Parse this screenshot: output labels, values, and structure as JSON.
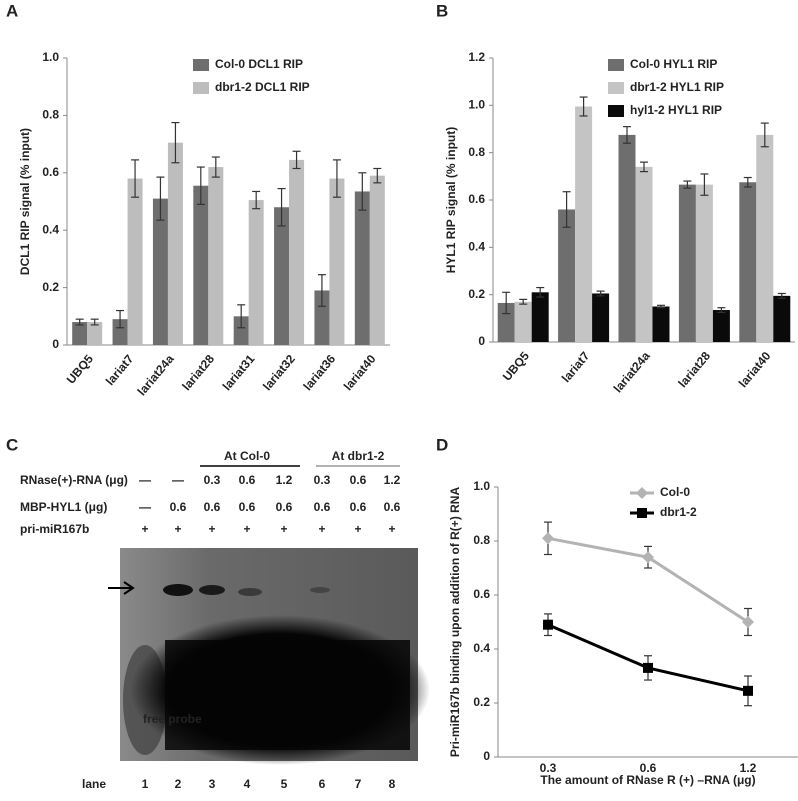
{
  "chart_data": [
    {
      "panel": "A",
      "type": "bar",
      "y_label": "DCL1 RIP signal (% input)",
      "categories": [
        "UBQ5",
        "lariat7",
        "lariat24a",
        "lariat28",
        "lariat31",
        "lariat32",
        "lariat36",
        "lariat40"
      ],
      "series": [
        {
          "name": "Col-0 DCL1 RIP",
          "color": "#6e6e6e",
          "values": [
            0.08,
            0.09,
            0.51,
            0.555,
            0.1,
            0.48,
            0.19,
            0.535
          ],
          "errors": [
            0.01,
            0.03,
            0.075,
            0.065,
            0.04,
            0.065,
            0.055,
            0.065
          ]
        },
        {
          "name": "dbr1-2 DCL1 RIP",
          "color": "#bdbdbd",
          "values": [
            0.08,
            0.58,
            0.705,
            0.62,
            0.505,
            0.645,
            0.58,
            0.59
          ],
          "errors": [
            0.01,
            0.065,
            0.07,
            0.035,
            0.03,
            0.03,
            0.065,
            0.025
          ]
        }
      ],
      "ylim": [
        0,
        1
      ],
      "yticks": [
        0,
        0.2,
        0.4,
        0.6,
        0.8,
        {
          "value": 1,
          "label": "1.0"
        }
      ]
    },
    {
      "panel": "B",
      "type": "bar",
      "y_label": "HYL1 RIP signal (% input)",
      "categories": [
        "UBQ5",
        "lariat7",
        "lariat24a",
        "lariat28",
        "lariat40"
      ],
      "series": [
        {
          "name": "Col-0 HYL1 RIP",
          "color": "#6e6e6e",
          "values": [
            0.165,
            0.56,
            0.875,
            0.665,
            0.675
          ],
          "errors": [
            0.045,
            0.075,
            0.035,
            0.015,
            0.02
          ]
        },
        {
          "name": "dbr1-2 HYL1 RIP",
          "color": "#c4c4c4",
          "values": [
            0.17,
            0.995,
            0.74,
            0.665,
            0.875
          ],
          "errors": [
            0.01,
            0.04,
            0.02,
            0.045,
            0.05
          ]
        },
        {
          "name": "hyl1-2 HYL1 RIP",
          "color": "#0a0a0a",
          "values": [
            0.21,
            0.205,
            0.15,
            0.135,
            0.195
          ],
          "errors": [
            0.02,
            0.01,
            0.005,
            0.01,
            0.01
          ]
        }
      ],
      "ylim": [
        0,
        1.2
      ],
      "yticks": [
        0,
        0.2,
        0.4,
        0.6,
        0.8,
        {
          "value": 1,
          "label": "1.0"
        },
        1.2
      ]
    },
    {
      "panel": "D",
      "type": "line",
      "y_label": "Pri-miR167b binding  upon addition of R(+) RNA",
      "x_label": "The amount of RNase R (+) –RNA (μg)",
      "categories": [
        "0.3",
        "0.6",
        "1.2"
      ],
      "series": [
        {
          "name": "Col-0",
          "color": "#b3b3b3",
          "marker": "diamond",
          "values": [
            0.81,
            0.74,
            0.5
          ],
          "errors": [
            0.06,
            0.04,
            0.05
          ]
        },
        {
          "name": "dbr1-2",
          "color": "#000000",
          "marker": "square",
          "values": [
            0.49,
            0.33,
            0.245
          ],
          "errors": [
            0.04,
            0.045,
            0.055
          ]
        }
      ],
      "ylim": [
        0,
        1
      ],
      "yticks": [
        0,
        0.2,
        0.4,
        0.6,
        0.8,
        {
          "value": 1,
          "label": "1.0"
        }
      ]
    }
  ],
  "gel": {
    "panel": "C",
    "groups": [
      "At Col-0",
      "At dbr1-2"
    ],
    "rows": [
      {
        "label": "RNase(+)-RNA (μg)",
        "cells": [
          "—",
          "—",
          "0.3",
          "0.6",
          "1.2",
          "0.3",
          "0.6",
          "1.2"
        ]
      },
      {
        "label": "MBP-HYL1 (μg)",
        "cells": [
          "—",
          "0.6",
          "0.6",
          "0.6",
          "0.6",
          "0.6",
          "0.6",
          "0.6"
        ]
      },
      {
        "label": "pri-miR167b",
        "cells": [
          "+",
          "+",
          "+",
          "+",
          "+",
          "+",
          "+",
          "+"
        ]
      }
    ],
    "free_probe": "free probe",
    "lane_label": "lane",
    "lanes": [
      "1",
      "2",
      "3",
      "4",
      "5",
      "6",
      "7",
      "8"
    ]
  }
}
